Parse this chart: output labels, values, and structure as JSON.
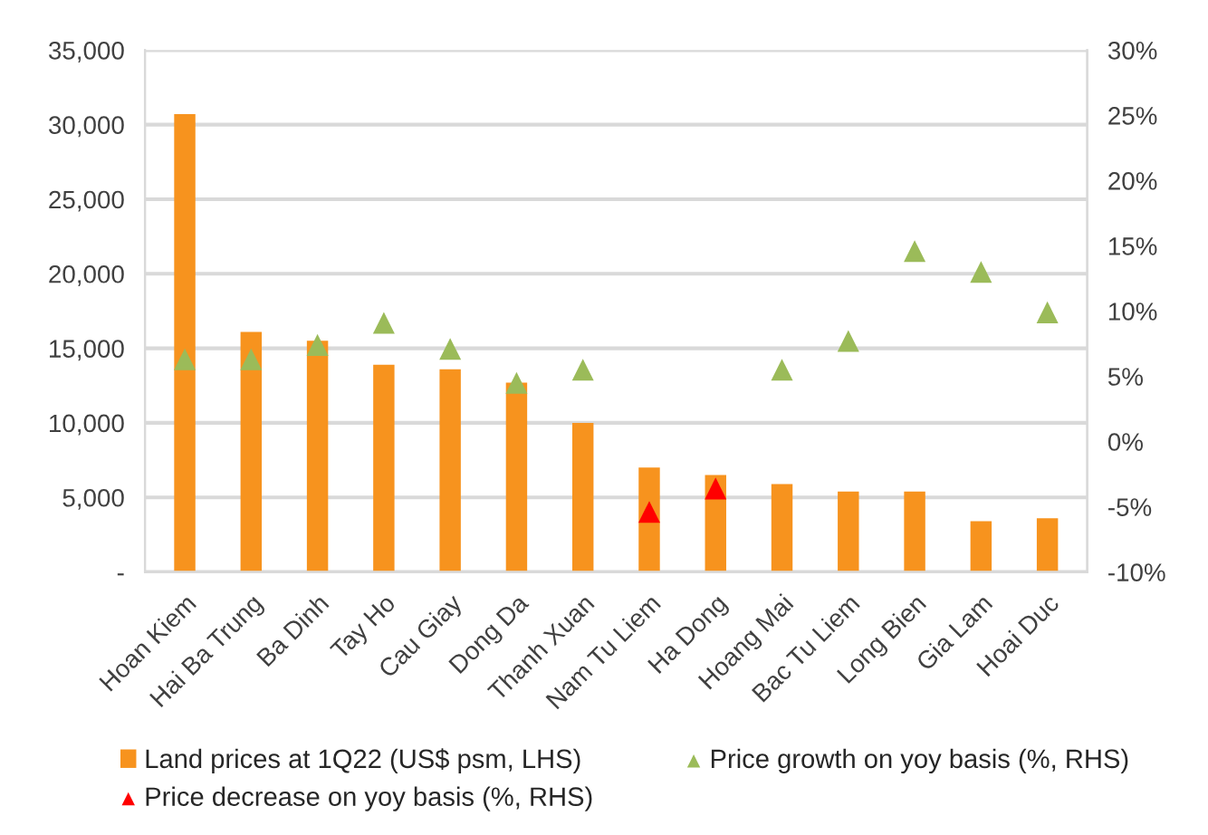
{
  "chart_data": {
    "type": "bar",
    "categories": [
      "Hoan Kiem",
      "Hai Ba Trung",
      "Ba Dinh",
      "Tay Ho",
      "Cau Giay",
      "Dong Da",
      "Thanh Xuan",
      "Nam Tu Liem",
      "Ha Dong",
      "Hoang Mai",
      "Bac Tu Liem",
      "Long Bien",
      "Gia Lam",
      "Hoai Duc"
    ],
    "series": [
      {
        "name": "Land prices at 1Q22 (US$ psm, LHS)",
        "color": "#f7931e",
        "values": [
          30700,
          16100,
          15500,
          13900,
          13600,
          12700,
          10000,
          7000,
          6500,
          5900,
          5400,
          5400,
          3400,
          3600
        ]
      },
      {
        "name": "Price growth on yoy basis (%, RHS)",
        "type": "scatter",
        "axis": "y2",
        "color": "#9bbb59",
        "values": [
          6.3,
          6.3,
          7.4,
          9.1,
          7.1,
          4.5,
          5.5,
          null,
          null,
          5.5,
          7.7,
          14.6,
          13.0,
          9.9
        ]
      },
      {
        "name": "Price decrease on yoy basis (%, RHS)",
        "type": "scatter",
        "axis": "y2",
        "color": "#ff0000",
        "values": [
          null,
          null,
          null,
          null,
          null,
          null,
          null,
          -5.4,
          -3.6,
          null,
          null,
          null,
          null,
          null
        ]
      }
    ],
    "ylim": [
      0,
      35000
    ],
    "yticks": [
      {
        "value": 0,
        "label": "-"
      },
      {
        "value": 5000,
        "label": "5,000"
      },
      {
        "value": 10000,
        "label": "10,000"
      },
      {
        "value": 15000,
        "label": "15,000"
      },
      {
        "value": 20000,
        "label": "20,000"
      },
      {
        "value": 25000,
        "label": "25,000"
      },
      {
        "value": 30000,
        "label": "30,000"
      },
      {
        "value": 35000,
        "label": "35,000"
      }
    ],
    "y2lim": [
      -10,
      30
    ],
    "y2ticks": [
      {
        "value": -10,
        "label": "-10%"
      },
      {
        "value": -5,
        "label": "-5%"
      },
      {
        "value": 0,
        "label": "0%"
      },
      {
        "value": 5,
        "label": "5%"
      },
      {
        "value": 10,
        "label": "10%"
      },
      {
        "value": 15,
        "label": "15%"
      },
      {
        "value": 20,
        "label": "20%"
      },
      {
        "value": 25,
        "label": "25%"
      },
      {
        "value": 30,
        "label": "30%"
      }
    ],
    "grid": "y",
    "legend": "bottom",
    "marker": "triangle"
  }
}
